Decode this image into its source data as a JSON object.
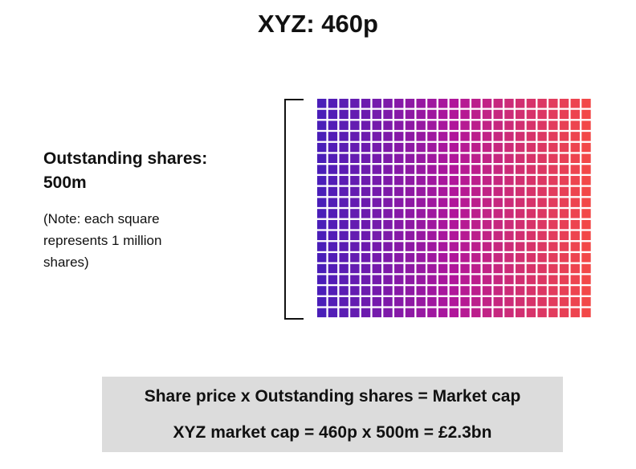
{
  "header": {
    "title": "XYZ: 460p"
  },
  "label": {
    "text": "Outstanding shares: 500m",
    "note": "(Note: each square represents 1 million shares)"
  },
  "formula": {
    "line1": "Share price x Outstanding shares = Market cap",
    "line2": "XYZ market cap = 460p x 500m = £2.3bn"
  }
}
